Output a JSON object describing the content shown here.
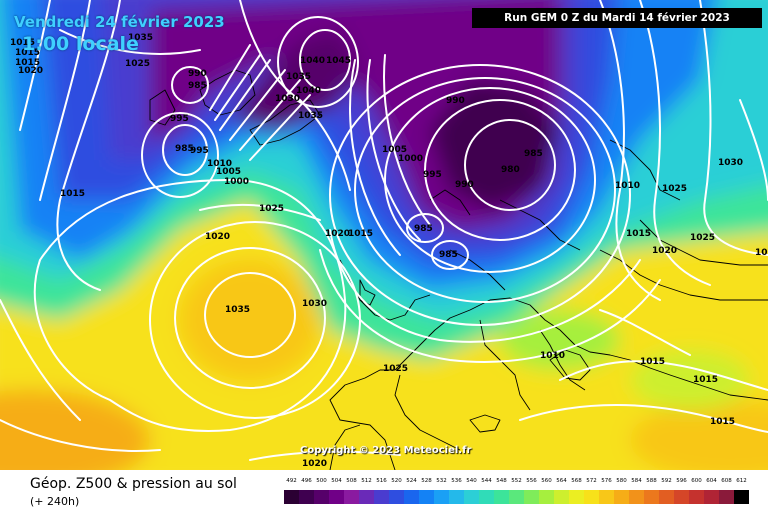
{
  "header": {
    "date_title": "Vendredi 24 février 2023",
    "time_title": "1:00 locale",
    "run_banner": "Run GEM 0 Z du Mardi 14 février 2023"
  },
  "footer": {
    "product_title": "Géop. Z500 & pression au sol",
    "lead_time": "(+ 240h)",
    "copyright": "Copyright © 2023 Meteociel.fr"
  },
  "legend": {
    "values": [
      "492",
      "496",
      "500",
      "504",
      "508",
      "512",
      "516",
      "520",
      "524",
      "528",
      "532",
      "536",
      "540",
      "544",
      "548",
      "552",
      "556",
      "560",
      "564",
      "568",
      "572",
      "576",
      "580",
      "584",
      "588",
      "592",
      "596",
      "600",
      "604",
      "608",
      "612"
    ],
    "colors": [
      "#2b0033",
      "#3f0050",
      "#56006a",
      "#700087",
      "#8a1aa0",
      "#6a2ab8",
      "#4a3ccf",
      "#2f4ee0",
      "#1a66ee",
      "#1482f5",
      "#1aa0f5",
      "#24b9ea",
      "#2ccfd6",
      "#30dcb8",
      "#3ce49a",
      "#5ae87c",
      "#7fec5a",
      "#a6ef3e",
      "#cdef2e",
      "#ebee22",
      "#f7e11a",
      "#f8c718",
      "#f6ad17",
      "#f2921a",
      "#ec781d",
      "#e25e22",
      "#d54628",
      "#c5322e",
      "#b02435",
      "#8a1a3a",
      "#000000"
    ]
  },
  "pressure_labels": [
    {
      "text": "1025"
    },
    {
      "text": "1035"
    },
    {
      "text": "1020"
    },
    {
      "text": "1040"
    },
    {
      "text": "1045"
    },
    {
      "text": "990"
    },
    {
      "text": "985"
    },
    {
      "text": "995"
    },
    {
      "text": "1040"
    },
    {
      "text": "1035"
    },
    {
      "text": "1030"
    },
    {
      "text": "1035"
    },
    {
      "text": "990"
    },
    {
      "text": "1005"
    },
    {
      "text": "1000"
    },
    {
      "text": "995"
    },
    {
      "text": "990"
    },
    {
      "text": "980"
    },
    {
      "text": "985"
    },
    {
      "text": "985"
    },
    {
      "text": "985"
    },
    {
      "text": "985"
    },
    {
      "text": "995"
    },
    {
      "text": "1010"
    },
    {
      "text": "1005"
    },
    {
      "text": "1000"
    },
    {
      "text": "1015"
    },
    {
      "text": "1025"
    },
    {
      "text": "1020"
    },
    {
      "text": "1035"
    },
    {
      "text": "1030"
    },
    {
      "text": "1020"
    },
    {
      "text": "1015"
    },
    {
      "text": "1025"
    },
    {
      "text": "1010"
    },
    {
      "text": "1015"
    },
    {
      "text": "1015"
    },
    {
      "text": "1015"
    },
    {
      "text": "1020"
    },
    {
      "text": "1030"
    },
    {
      "text": "1010"
    },
    {
      "text": "1025"
    },
    {
      "text": "1015"
    },
    {
      "text": "1020"
    },
    {
      "text": "1025"
    },
    {
      "text": "1015"
    },
    {
      "text": "1015"
    },
    {
      "text": "1015"
    },
    {
      "text": "1015"
    }
  ]
}
